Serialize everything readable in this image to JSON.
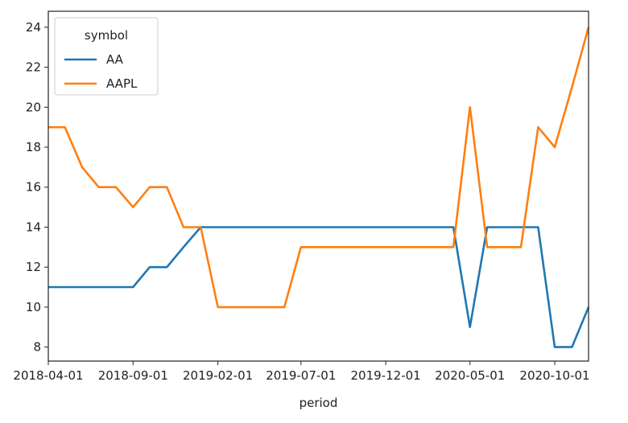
{
  "chart_data": {
    "type": "line",
    "xlabel": "period",
    "ylabel": "",
    "ylim": [
      7.3,
      24.8
    ],
    "yticks": [
      8,
      10,
      12,
      14,
      16,
      18,
      20,
      22,
      24
    ],
    "xlim": [
      "2018-04-01",
      "2020-12-01"
    ],
    "xticks": [
      "2018-04-01",
      "2018-09-01",
      "2019-02-01",
      "2019-07-01",
      "2019-12-01",
      "2020-05-01",
      "2020-10-01"
    ],
    "x": [
      "2018-04-01",
      "2018-05-01",
      "2018-06-01",
      "2018-07-01",
      "2018-08-01",
      "2018-09-01",
      "2018-10-01",
      "2018-11-01",
      "2018-12-01",
      "2019-01-01",
      "2019-02-01",
      "2019-03-01",
      "2019-04-01",
      "2019-05-01",
      "2019-06-01",
      "2019-07-01",
      "2019-08-01",
      "2019-09-01",
      "2019-10-01",
      "2019-11-01",
      "2019-12-01",
      "2020-01-01",
      "2020-02-01",
      "2020-03-01",
      "2020-04-01",
      "2020-05-01",
      "2020-06-01",
      "2020-07-01",
      "2020-08-01",
      "2020-09-01",
      "2020-10-01",
      "2020-11-01",
      "2020-12-01"
    ],
    "series": [
      {
        "name": "AA",
        "color": "#1f77b4",
        "values": [
          11,
          11,
          11,
          11,
          11,
          11,
          12,
          12,
          13,
          14,
          14,
          14,
          14,
          14,
          14,
          14,
          14,
          14,
          14,
          14,
          14,
          14,
          14,
          14,
          14,
          9,
          14,
          14,
          14,
          14,
          8,
          8,
          10
        ]
      },
      {
        "name": "AAPL",
        "color": "#ff7f0e",
        "values": [
          19,
          19,
          17,
          16,
          16,
          15,
          16,
          16,
          14,
          14,
          10,
          10,
          10,
          10,
          10,
          13,
          13,
          13,
          13,
          13,
          13,
          13,
          13,
          13,
          13,
          20,
          13,
          13,
          13,
          19,
          18,
          21,
          24
        ]
      }
    ],
    "legend": {
      "title": "symbol",
      "placement": "upper-left"
    },
    "grid": false
  }
}
